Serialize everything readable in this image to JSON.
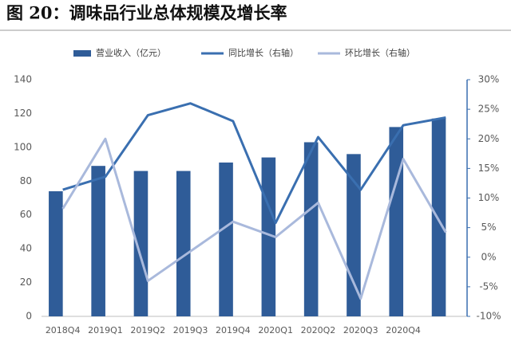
{
  "chart_data": {
    "type": "bar",
    "title": "图 20：调味品行业总体规模及增长率",
    "categories": [
      "2018Q4",
      "2019Q1",
      "2019Q2",
      "2019Q3",
      "2019Q4",
      "2020Q1",
      "2020Q2",
      "2020Q3",
      "2020Q4",
      null
    ],
    "series": [
      {
        "name": "营业收入（亿元）",
        "type": "bar",
        "color": "#2f5c98",
        "values": [
          74,
          89,
          86,
          86,
          91,
          94,
          103,
          96,
          112,
          117
        ]
      },
      {
        "name": "同比增长（右轴）",
        "type": "line",
        "axis": "y2",
        "color": "#3a6fb0",
        "values": [
          11.4,
          13.6,
          24,
          26,
          23,
          5.8,
          20.3,
          11.4,
          22.3,
          23.6
        ]
      },
      {
        "name": "环比增长（右轴）",
        "type": "line",
        "axis": "y2",
        "color": "#a9b9dc",
        "values": [
          8.2,
          20,
          -4,
          1,
          6,
          3.4,
          9.2,
          -7,
          16.6,
          4.2
        ]
      }
    ],
    "ylim": [
      0,
      140
    ],
    "yticks": [
      0,
      20,
      40,
      60,
      80,
      100,
      120,
      140
    ],
    "y2lim": [
      -10,
      30
    ],
    "y2ticks": [
      {
        "value": -10,
        "label": "-10%"
      },
      {
        "value": -5,
        "label": "-5%"
      },
      {
        "value": 0,
        "label": "0%"
      },
      {
        "value": 5,
        "label": "5%"
      },
      {
        "value": 10,
        "label": "10%"
      },
      {
        "value": 15,
        "label": "15%"
      },
      {
        "value": 20,
        "label": "20%"
      },
      {
        "value": 25,
        "label": "25%"
      },
      {
        "value": 30,
        "label": "30%"
      }
    ],
    "grid": false
  }
}
